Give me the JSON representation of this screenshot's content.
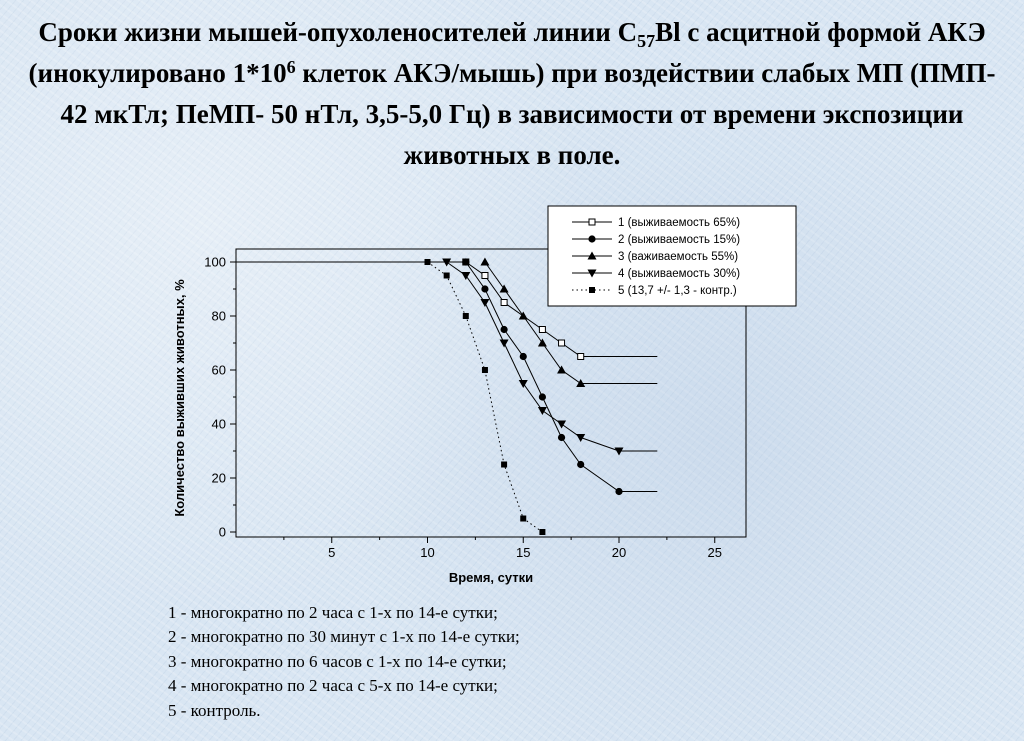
{
  "slide": {
    "title_parts": {
      "p1": "Сроки жизни мышей-опухоленосителей линии С",
      "sub": "57",
      "p2": "Bl с асцитной формой АКЭ (инокулировано 1*10",
      "sup": "6",
      "p3": " клеток АКЭ/мышь) при воздействии слабых МП (ПМП- 42 мкТл; ПеМП- 50 нТл, 3,5-5,0 Гц) в зависимости от времени экспозиции животных в поле."
    },
    "notes": [
      "1 - многократно по 2 часа с 1-х по 14-е сутки;",
      "2 - многократно по 30 минут с 1-х по 14-е сутки;",
      "3 - многократно по 6 часов с 1-х по 14-е сутки;",
      "4 - многократно по 2 часа с 5-х по 14-е сутки;",
      "5 - контроль."
    ]
  },
  "chart_data": {
    "type": "line",
    "xlabel": "Время, сутки",
    "ylabel": "Количество выживших животных, %",
    "xlim": [
      0,
      27
    ],
    "ylim": [
      0,
      100
    ],
    "xticks": [
      5,
      10,
      15,
      20,
      25
    ],
    "yticks": [
      0,
      20,
      40,
      60,
      80,
      100
    ],
    "grid": false,
    "legend_position": "top-right",
    "series": [
      {
        "name": "1 (выживаемость 65%)",
        "marker": "square-open",
        "line": "solid",
        "lead_in": [
          0,
          100
        ],
        "tail_to": 22,
        "points": [
          [
            12,
            100
          ],
          [
            13,
            95
          ],
          [
            14,
            85
          ],
          [
            16,
            75
          ],
          [
            17,
            70
          ],
          [
            18,
            65
          ]
        ]
      },
      {
        "name": "2 (выживаемость 15%)",
        "marker": "circle",
        "line": "solid",
        "lead_in": null,
        "tail_to": 22,
        "points": [
          [
            12,
            100
          ],
          [
            13,
            90
          ],
          [
            14,
            75
          ],
          [
            15,
            65
          ],
          [
            16,
            50
          ],
          [
            17,
            35
          ],
          [
            18,
            25
          ],
          [
            20,
            15
          ]
        ]
      },
      {
        "name": "3 (важиваемость 55%)",
        "marker": "triangle-up",
        "line": "solid",
        "lead_in": null,
        "tail_to": 22,
        "points": [
          [
            13,
            100
          ],
          [
            14,
            90
          ],
          [
            15,
            80
          ],
          [
            16,
            70
          ],
          [
            17,
            60
          ],
          [
            18,
            55
          ]
        ]
      },
      {
        "name": "4 (выживаемость 30%)",
        "marker": "triangle-down",
        "line": "solid",
        "lead_in": null,
        "tail_to": 22,
        "points": [
          [
            11,
            100
          ],
          [
            12,
            95
          ],
          [
            13,
            85
          ],
          [
            14,
            70
          ],
          [
            15,
            55
          ],
          [
            16,
            45
          ],
          [
            17,
            40
          ],
          [
            18,
            35
          ],
          [
            20,
            30
          ]
        ]
      },
      {
        "name": "5 (13,7 +/- 1,3 - контр.)",
        "marker": "square",
        "line": "dotted",
        "lead_in": null,
        "tail_to": null,
        "points": [
          [
            10,
            100
          ],
          [
            11,
            95
          ],
          [
            12,
            80
          ],
          [
            13,
            60
          ],
          [
            14,
            25
          ],
          [
            15,
            5
          ],
          [
            16,
            0
          ]
        ]
      }
    ]
  }
}
